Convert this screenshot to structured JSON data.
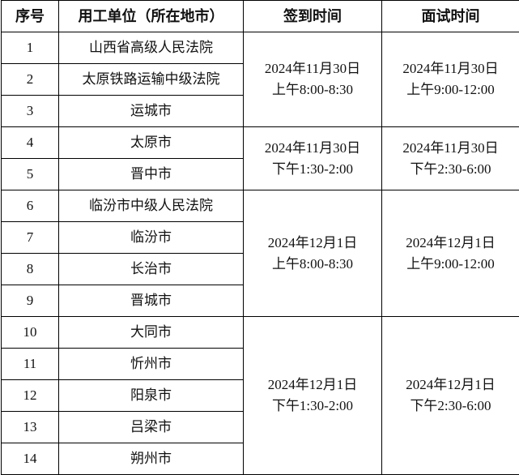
{
  "headers": [
    "序号",
    "用工单位（所在地市）",
    "签到时间",
    "面试时间"
  ],
  "rows": [
    {
      "no": "1",
      "unit": "山西省高级人民法院"
    },
    {
      "no": "2",
      "unit": "太原铁路运输中级法院"
    },
    {
      "no": "3",
      "unit": "运城市"
    },
    {
      "no": "4",
      "unit": "太原市"
    },
    {
      "no": "5",
      "unit": "晋中市"
    },
    {
      "no": "6",
      "unit": "临汾市中级人民法院"
    },
    {
      "no": "7",
      "unit": "临汾市"
    },
    {
      "no": "8",
      "unit": "长治市"
    },
    {
      "no": "9",
      "unit": "晋城市"
    },
    {
      "no": "10",
      "unit": "大同市"
    },
    {
      "no": "11",
      "unit": "忻州市"
    },
    {
      "no": "12",
      "unit": "阳泉市"
    },
    {
      "no": "13",
      "unit": "吕梁市"
    },
    {
      "no": "14",
      "unit": "朔州市"
    }
  ],
  "groups": [
    {
      "checkin_date": "2024年11月30日",
      "checkin_time": "上午8:00-8:30",
      "interview_date": "2024年11月30日",
      "interview_time": "上午9:00-12:00"
    },
    {
      "checkin_date": "2024年11月30日",
      "checkin_time": "下午1:30-2:00",
      "interview_date": "2024年11月30日",
      "interview_time": "下午2:30-6:00"
    },
    {
      "checkin_date": "2024年12月1日",
      "checkin_time": "上午8:00-8:30",
      "interview_date": "2024年12月1日",
      "interview_time": "上午9:00-12:00"
    },
    {
      "checkin_date": "2024年12月1日",
      "checkin_time": "下午1:30-2:00",
      "interview_date": "2024年12月1日",
      "interview_time": "下午2:30-6:00"
    }
  ]
}
